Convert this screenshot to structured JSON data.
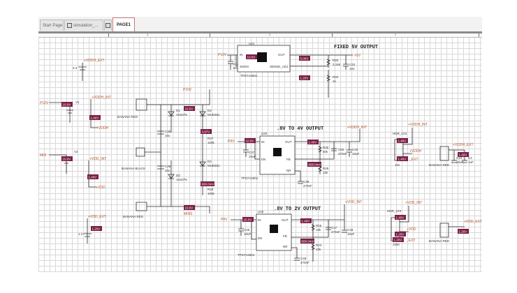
{
  "tabs": [
    {
      "label": "Start Page",
      "active": false
    },
    {
      "label": "simulation_...",
      "active": false,
      "icon": "schematic-icon"
    },
    {
      "label": "",
      "active": false,
      "icon": "page-icon"
    },
    {
      "label": "PAGE1",
      "active": true
    }
  ],
  "ruler": {
    "marks": [
      "4",
      "3",
      "2"
    ]
  },
  "colors": {
    "probe": "#7b1e45",
    "net_label": "#b5562a",
    "wire": "#2b2b2b",
    "grid": "#d8d8d8"
  },
  "titles": {
    "fixed5v": "FIXED 5V OUTPUT",
    "v08to4": ".8V TO 4V OUTPUT",
    "v08to2": ".8V TO 2V OUTPUT"
  },
  "nets": [
    "+VDDH_EXT",
    "P10V",
    "+VDDH_INT",
    "+VDDH",
    "MIN",
    "+VDD_INT",
    "+VDD",
    "+VDD_EXT",
    "P10V",
    "MINS",
    "P10V",
    "+5V",
    "P8V",
    "+VDDH_INT",
    "+VDDH_INT",
    "+VDDH",
    "_EXT",
    "+VDDH_EXT",
    "P8V",
    "+VDD_INT",
    "+VDD_INT",
    "+VDD",
    "_EXT",
    "+VDD_EXT"
  ],
  "components": [
    "3.4",
    "V1",
    "V2",
    "1.2",
    "BANANA RED",
    "BANANA BLACK",
    "BANANA RED",
    "D1",
    "1N4376",
    "D2",
    "MUE581",
    "C38",
    "10u",
    "R27",
    "100k",
    "D3",
    "1N4376",
    "D4",
    "MUE581",
    "C36",
    "10u",
    "R28",
    "100k",
    "U21",
    "IN",
    "SHDN",
    "OUT",
    "SENSE_ADJ",
    "TPS7A4501",
    "C41",
    "10u",
    "R33",
    "3.15k",
    "R32",
    "1k",
    "C42",
    "10u",
    "U20",
    "IN",
    "EN",
    "OUT",
    "FB",
    "NR",
    "TPS7A4501",
    "C37",
    "10uF",
    "R30",
    "50k",
    "R29",
    "10k",
    "C50",
    "470nF",
    "C40",
    "10uF",
    "C39",
    "470nF",
    "HDR_1X3",
    "J31",
    "BANANA RED",
    "C10",
    "10uF",
    "C4",
    "1uF",
    "U22",
    "IN",
    "EN",
    "OUT",
    "FB",
    "NR",
    "TPS7A4501",
    "C46",
    "10uF",
    "R26",
    "10k",
    "R24",
    "10k",
    "C47",
    "470nF",
    "C48",
    "10uF",
    "C49",
    "470nF",
    "HDR_1X3",
    "J300",
    "BANANA RED"
  ],
  "probes": [
    "10.0V",
    "1.40V",
    "10.0V",
    "1.40V",
    "1.20V",
    "10.0V",
    "3.97V",
    "600.0mV",
    "10.0V",
    "10.0V",
    "5.00V",
    "1.20V",
    "10.0V",
    "1.40V",
    "600.0mV",
    "1.40V",
    "1.40V",
    "1.40V",
    "10.0V",
    "1.40V",
    "600.0mV",
    "1.40V",
    "1.20V",
    "1.20V",
    "1.20V"
  ]
}
